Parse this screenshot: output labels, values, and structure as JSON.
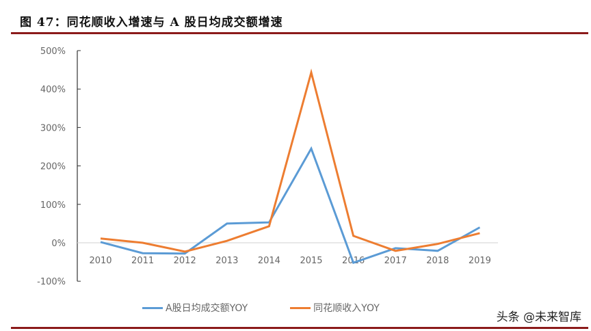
{
  "header": {
    "title": "图 47：同花顺收入增速与 A 股日均成交额增速"
  },
  "watermark": "头条 @未来智库",
  "colors": {
    "title_rule": "#8b1a1a",
    "series_a": "#5b9bd5",
    "series_b": "#ed7d31",
    "axis": "#333333",
    "zero_line": "#d9d9d9"
  },
  "chart_data": {
    "type": "line",
    "title": "同花顺收入增速与 A 股日均成交额增速",
    "xlabel": "",
    "ylabel": "",
    "categories": [
      "2010",
      "2011",
      "2012",
      "2013",
      "2014",
      "2015",
      "2016",
      "2017",
      "2018",
      "2019"
    ],
    "series": [
      {
        "name": "A股日均成交额YOY",
        "color": "#5b9bd5",
        "values": [
          2,
          -27,
          -28,
          50,
          53,
          245,
          -52,
          -14,
          -21,
          40
        ]
      },
      {
        "name": "同花顺收入YOY",
        "color": "#ed7d31",
        "values": [
          11,
          0,
          -23,
          5,
          43,
          443,
          18,
          -21,
          -3,
          25
        ]
      }
    ],
    "ylim": [
      -100,
      500
    ],
    "yticks": [
      -100,
      0,
      100,
      200,
      300,
      400,
      500
    ],
    "ytick_labels": [
      "-100%",
      "0%",
      "100%",
      "200%",
      "300%",
      "400%",
      "500%"
    ],
    "grid": false,
    "legend_position": "bottom"
  },
  "legend": {
    "items": [
      {
        "label": "A股日均成交额YOY"
      },
      {
        "label": "同花顺收入YOY"
      }
    ]
  }
}
